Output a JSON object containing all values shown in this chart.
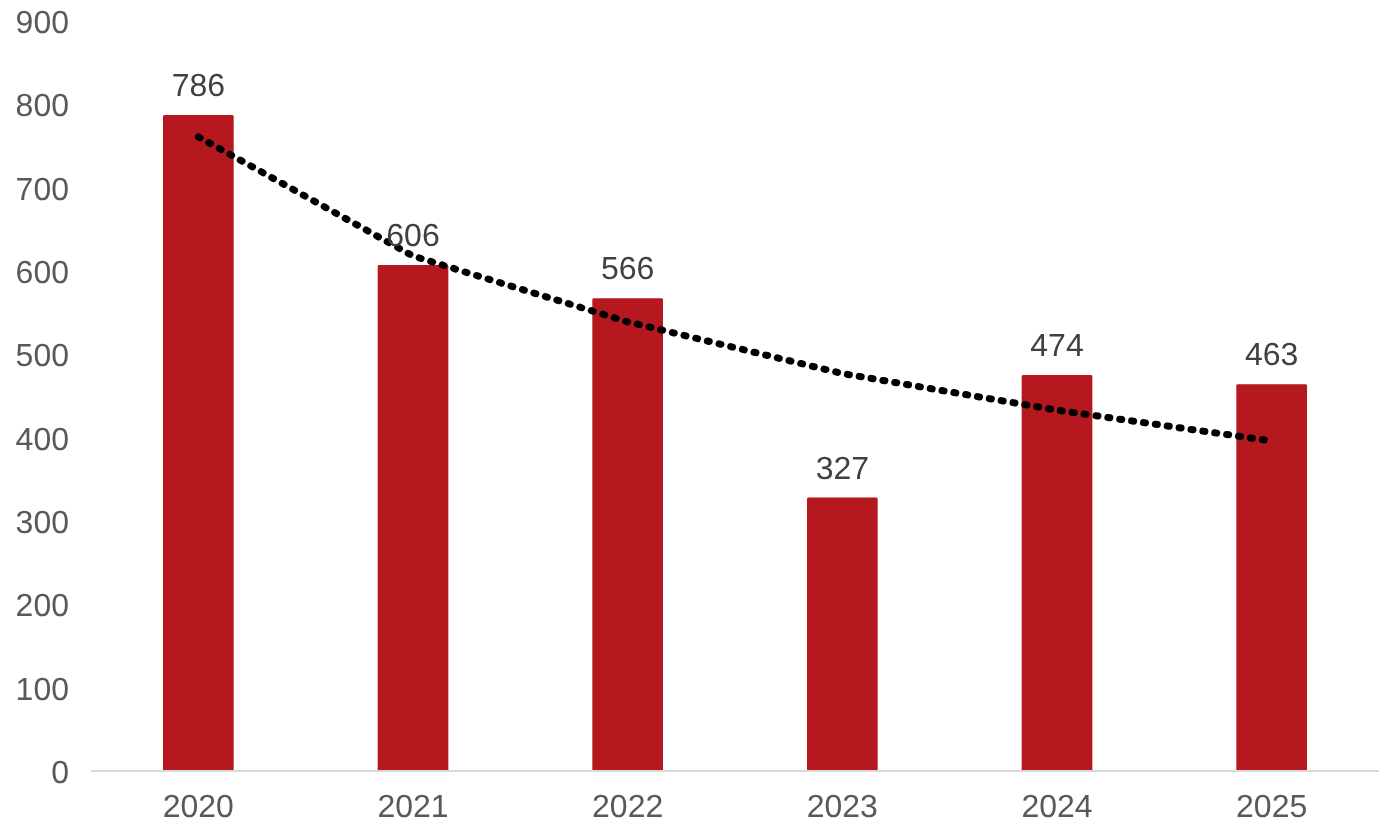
{
  "chart_data": {
    "type": "bar",
    "categories": [
      "2020",
      "2021",
      "2022",
      "2023",
      "2024",
      "2025"
    ],
    "ylim": [
      0,
      900
    ],
    "yticks": [
      0,
      100,
      200,
      300,
      400,
      500,
      600,
      700,
      800,
      900
    ],
    "grid": false,
    "series": [
      {
        "color": "#b5191f",
        "values": [
          786,
          606,
          566,
          327,
          474,
          463
        ],
        "value_labels": [
          "786",
          "606",
          "566",
          "327",
          "474",
          "463"
        ]
      },
      {
        "type": "line",
        "color": "#000000",
        "line_style": "dotted",
        "values": [
          761,
          618,
          539,
          477,
          433,
          396
        ]
      }
    ]
  }
}
